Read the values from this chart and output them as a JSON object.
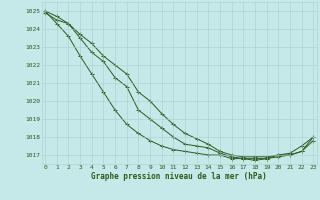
{
  "xlabel": "Graphe pression niveau de la mer (hPa)",
  "background_color": "#c5e8e8",
  "grid_color": "#aacfcf",
  "line_color": "#2d5a1b",
  "ylim": [
    1016.5,
    1025.5
  ],
  "xlim": [
    -0.3,
    23.3
  ],
  "yticks": [
    1017,
    1018,
    1019,
    1020,
    1021,
    1022,
    1023,
    1024,
    1025
  ],
  "xticks": [
    0,
    1,
    2,
    3,
    4,
    5,
    6,
    7,
    8,
    9,
    10,
    11,
    12,
    13,
    14,
    15,
    16,
    17,
    18,
    19,
    20,
    21,
    22,
    23
  ],
  "series": [
    [
      1024.9,
      1024.5,
      1024.3,
      1023.5,
      1022.7,
      1022.2,
      1021.3,
      1020.8,
      1019.5,
      1019.0,
      1018.5,
      1018.0,
      1017.6,
      1017.5,
      1017.4,
      1017.1,
      1016.9,
      1016.8,
      1016.8,
      1016.8,
      1017.0,
      1017.0,
      1017.2,
      1017.8
    ],
    [
      1025.0,
      1024.3,
      1023.6,
      1022.5,
      1021.5,
      1020.5,
      1019.5,
      1018.7,
      1018.2,
      1017.8,
      1017.5,
      1017.3,
      1017.2,
      1017.1,
      1017.0,
      1017.0,
      1016.8,
      1016.8,
      1016.7,
      1016.8,
      1016.9,
      1017.0,
      1017.2,
      1018.0
    ],
    [
      1025.0,
      1024.7,
      1024.3,
      1023.7,
      1023.2,
      1022.5,
      1022.0,
      1021.5,
      1020.5,
      1020.0,
      1019.3,
      1018.7,
      1018.2,
      1017.9,
      1017.6,
      1017.2,
      1017.0,
      1016.9,
      1016.9,
      1016.9,
      1017.0,
      1017.1,
      1017.5,
      1018.0
    ]
  ],
  "figwidth": 3.2,
  "figheight": 2.0,
  "dpi": 100
}
